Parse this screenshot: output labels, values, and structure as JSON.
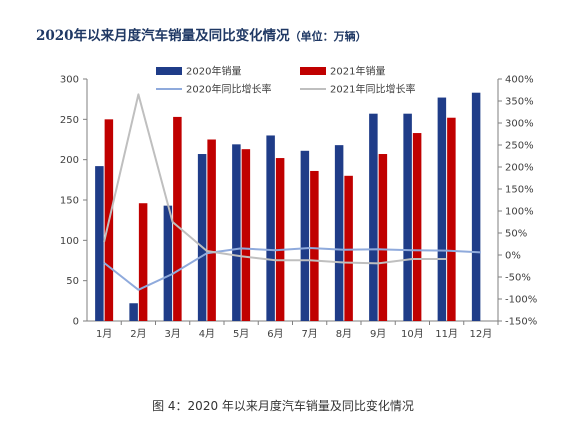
{
  "title": {
    "main": "2020年以来月度汽车销量及同比变化情况",
    "unit": "（单位：万辆）"
  },
  "caption": "图 4：2020 年以来月度汽车销量及同比变化情况",
  "colors": {
    "bar2020": "#1f3c88",
    "bar2021": "#c00000",
    "line2020": "#8faadc",
    "line2021": "#bfbfbf",
    "title": "#1f3864"
  },
  "chart_data": {
    "type": "bar",
    "categories": [
      "1月",
      "2月",
      "3月",
      "4月",
      "5月",
      "6月",
      "7月",
      "8月",
      "9月",
      "10月",
      "11月",
      "12月"
    ],
    "series": [
      {
        "name": "2020年销量",
        "type": "bar",
        "axis": "left",
        "values": [
          192,
          22,
          143,
          207,
          219,
          230,
          211,
          218,
          257,
          257,
          277,
          283
        ]
      },
      {
        "name": "2021年销量",
        "type": "bar",
        "axis": "left",
        "values": [
          250,
          146,
          253,
          225,
          213,
          202,
          186,
          180,
          207,
          233,
          252,
          null
        ]
      },
      {
        "name": "2020年同比增长率",
        "type": "line",
        "axis": "right",
        "values": [
          -18,
          -79,
          -43,
          4,
          15,
          11,
          16,
          12,
          13,
          11,
          10,
          6
        ]
      },
      {
        "name": "2021年同比增长率",
        "type": "line",
        "axis": "right",
        "values": [
          30,
          365,
          75,
          9,
          -3,
          -12,
          -12,
          -17,
          -19,
          -9,
          -9,
          null
        ]
      }
    ],
    "left_axis": {
      "min": 0,
      "max": 300,
      "ticks": [
        0,
        50,
        100,
        150,
        200,
        250,
        300
      ]
    },
    "right_axis": {
      "min": -150,
      "max": 400,
      "ticks": [
        "-150%",
        "-100%",
        "-50%",
        "0%",
        "50%",
        "100%",
        "150%",
        "200%",
        "250%",
        "300%",
        "350%",
        "400%"
      ]
    },
    "legend_position": "top",
    "grid": false
  }
}
